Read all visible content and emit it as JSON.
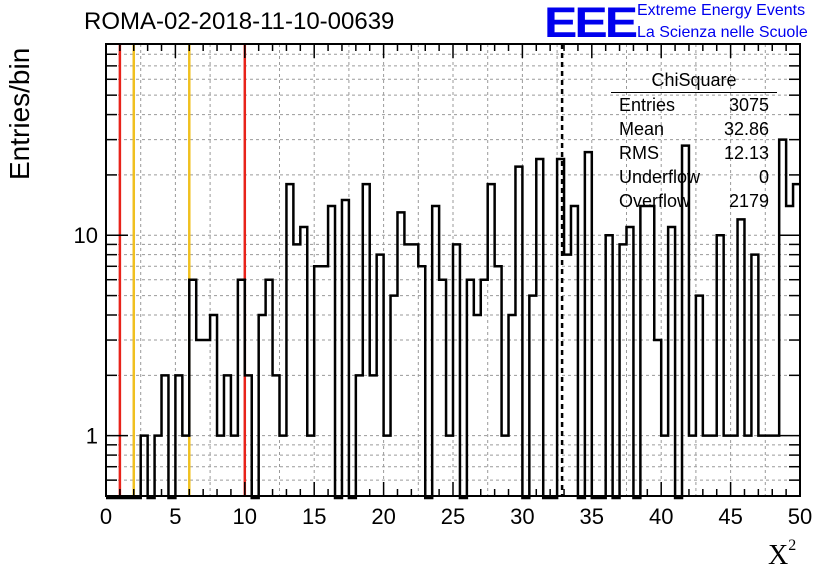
{
  "header": {
    "run_title": "ROMA-02-2018-11-10-00639",
    "logo_text": "EEE",
    "tagline_line1": "Extreme Energy Events",
    "tagline_line2": "La Scienza nelle Scuole",
    "brand_color": "#0000ee"
  },
  "stats_box": {
    "title": "ChiSquare",
    "rows": [
      {
        "label": "Entries",
        "value": "3075"
      },
      {
        "label": "Mean",
        "value": "32.86"
      },
      {
        "label": "RMS",
        "value": "12.13"
      },
      {
        "label": "Underflow",
        "value": "0"
      },
      {
        "label": "Overflow",
        "value": "2179"
      }
    ]
  },
  "chart_data": {
    "type": "bar",
    "histogram_style": "step",
    "title": "ROMA-02-2018-11-10-00639",
    "xlabel": "X",
    "xlabel_superscript": "2",
    "ylabel": "Entries/bin",
    "xlim": [
      0,
      50
    ],
    "ylim": [
      0.5,
      90
    ],
    "ylog": true,
    "grid": true,
    "bin_width": 0.5,
    "x_ticks": [
      "0",
      "5",
      "10",
      "15",
      "20",
      "25",
      "30",
      "35",
      "40",
      "45",
      "50"
    ],
    "y_ticks": [
      "1",
      "10"
    ],
    "values": [
      0,
      0,
      0,
      0,
      0,
      1,
      0,
      1,
      2,
      0,
      2,
      1,
      6,
      3,
      3,
      4,
      1,
      2,
      1,
      6,
      2,
      0,
      4,
      6,
      2,
      1,
      18,
      9,
      11,
      1,
      7,
      7,
      14,
      0,
      15,
      0,
      2,
      18,
      2,
      8,
      1,
      5,
      13,
      9,
      9,
      7,
      0,
      14,
      6,
      1,
      9,
      0,
      6,
      4,
      6,
      18,
      7,
      1,
      4,
      22,
      0,
      5,
      24,
      0,
      0,
      24,
      8,
      14,
      0,
      26,
      0,
      0,
      10,
      0,
      9,
      11,
      0,
      14,
      14,
      3,
      1,
      11,
      0,
      28,
      1,
      5,
      1,
      1,
      10,
      1,
      1,
      12,
      1,
      8,
      1,
      1,
      1,
      30,
      14,
      18
    ],
    "vertical_lines": [
      {
        "x": 1,
        "color": "#e8231a",
        "style": "solid"
      },
      {
        "x": 2,
        "color": "#f0c020",
        "style": "solid"
      },
      {
        "x": 6,
        "color": "#f0c020",
        "style": "solid"
      },
      {
        "x": 10,
        "color": "#e8231a",
        "style": "solid"
      },
      {
        "x": 32.86,
        "color": "#000000",
        "style": "dashed"
      }
    ]
  }
}
